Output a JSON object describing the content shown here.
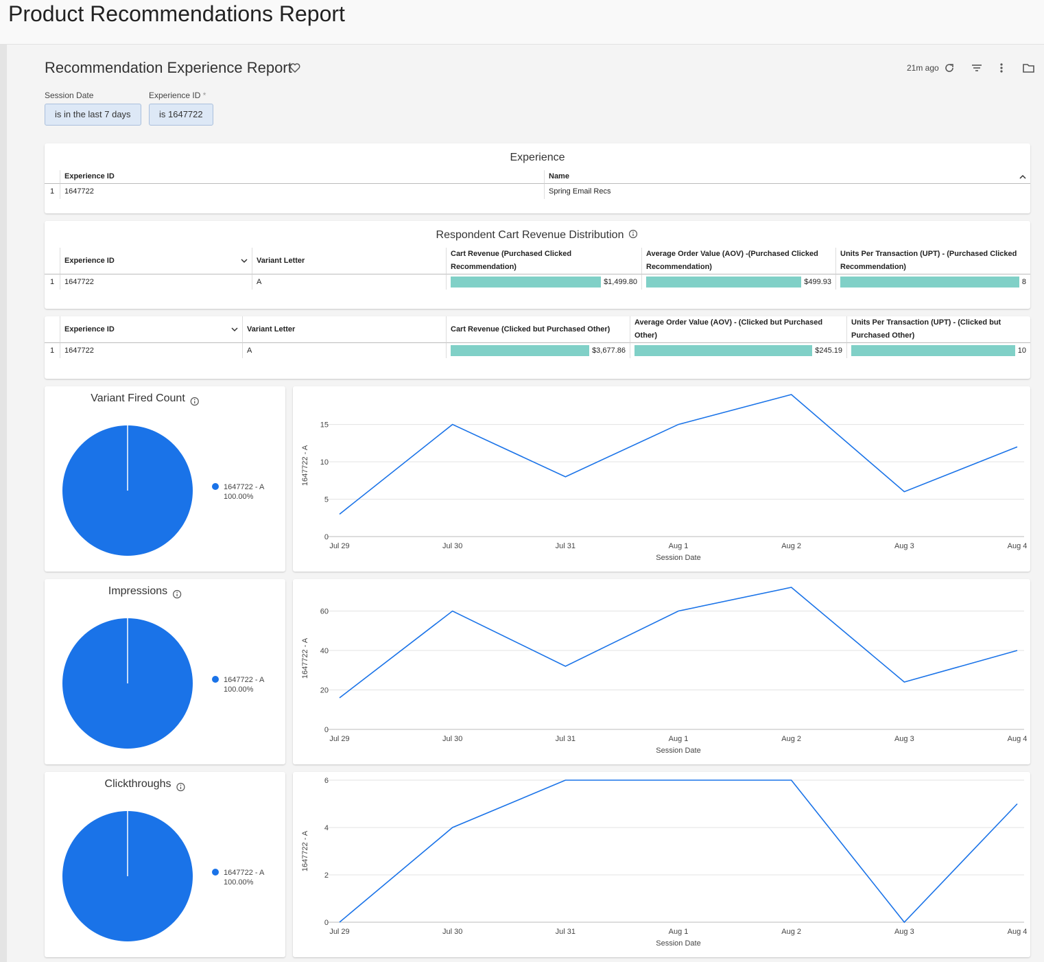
{
  "header": {
    "title": "Product Recommendations Report"
  },
  "dashboard": {
    "title": "Recommendation Experience Report",
    "updated": "21m ago"
  },
  "filters": [
    {
      "label": "Session Date",
      "value": "is in the last 7 days"
    },
    {
      "label": "Experience ID",
      "marker": "*",
      "value": "is 1647722"
    }
  ],
  "tables": [
    {
      "title": "Experience",
      "columns": [
        "Experience ID",
        "Name"
      ],
      "rows": [
        {
          "index": "1",
          "cells": [
            "1647722",
            "Spring Email Recs"
          ]
        }
      ]
    },
    {
      "title": "Respondent Cart Revenue Distribution",
      "columns": [
        "Experience ID",
        "Variant Letter",
        "Cart Revenue (Purchased Clicked Recommendation)",
        "Average Order Value (AOV) -(Purchased Clicked Recommendation)",
        "Units Per Transaction (UPT) - (Purchased Clicked Recommendation)"
      ],
      "rows": [
        {
          "index": "1",
          "cells": [
            "1647722",
            "A",
            "$1,499.80",
            "$499.93",
            "8"
          ]
        }
      ]
    },
    {
      "columns": [
        "Experience ID",
        "Variant Letter",
        "Cart Revenue (Clicked but Purchased Other)",
        "Average Order Value (AOV) - (Clicked but Purchased Other)",
        "Units Per Transaction (UPT) - (Clicked but Purchased Other)"
      ],
      "rows": [
        {
          "index": "1",
          "cells": [
            "1647722",
            "A",
            "$3,677.86",
            "$245.19",
            "10"
          ]
        }
      ]
    }
  ],
  "chart_data": [
    {
      "type": "pie",
      "title": "Variant Fired Count",
      "categories": [
        "1647722 - A"
      ],
      "values": [
        100
      ],
      "value_labels": [
        "100.00%"
      ],
      "colors": [
        "#1a73e8"
      ]
    },
    {
      "type": "line",
      "x_label": "Session Date",
      "categories": [
        "Jul 29",
        "Jul 30",
        "Jul 31",
        "Aug 1",
        "Aug 2",
        "Aug 3",
        "Aug 4"
      ],
      "series": [
        {
          "name": "1647722 - A",
          "color": "#1a73e8",
          "values": [
            3,
            15,
            8,
            15,
            19,
            6,
            12
          ]
        }
      ],
      "ylim": [
        0,
        19
      ],
      "yticks": [
        0,
        5,
        10,
        15
      ],
      "grid": true
    },
    {
      "type": "pie",
      "title": "Impressions",
      "categories": [
        "1647722 - A"
      ],
      "values": [
        100
      ],
      "value_labels": [
        "100.00%"
      ],
      "colors": [
        "#1a73e8"
      ]
    },
    {
      "type": "line",
      "x_label": "Session Date",
      "categories": [
        "Jul 29",
        "Jul 30",
        "Jul 31",
        "Aug 1",
        "Aug 2",
        "Aug 3",
        "Aug 4"
      ],
      "series": [
        {
          "name": "1647722 - A",
          "color": "#1a73e8",
          "values": [
            16,
            60,
            32,
            60,
            72,
            24,
            40
          ]
        }
      ],
      "ylim": [
        0,
        72
      ],
      "yticks": [
        0,
        20,
        40,
        60
      ],
      "grid": true
    },
    {
      "type": "pie",
      "title": "Clickthroughs",
      "categories": [
        "1647722 - A"
      ],
      "values": [
        100
      ],
      "value_labels": [
        "100.00%"
      ],
      "colors": [
        "#1a73e8"
      ]
    },
    {
      "type": "line",
      "x_label": "Session Date",
      "categories": [
        "Jul 29",
        "Jul 30",
        "Jul 31",
        "Aug 1",
        "Aug 2",
        "Aug 3",
        "Aug 4"
      ],
      "series": [
        {
          "name": "1647722 - A",
          "color": "#1a73e8",
          "values": [
            0,
            4,
            6,
            6,
            6,
            0,
            5
          ]
        }
      ],
      "ylim": [
        0,
        6
      ],
      "yticks": [
        0,
        2,
        4,
        6
      ],
      "grid": true
    }
  ]
}
